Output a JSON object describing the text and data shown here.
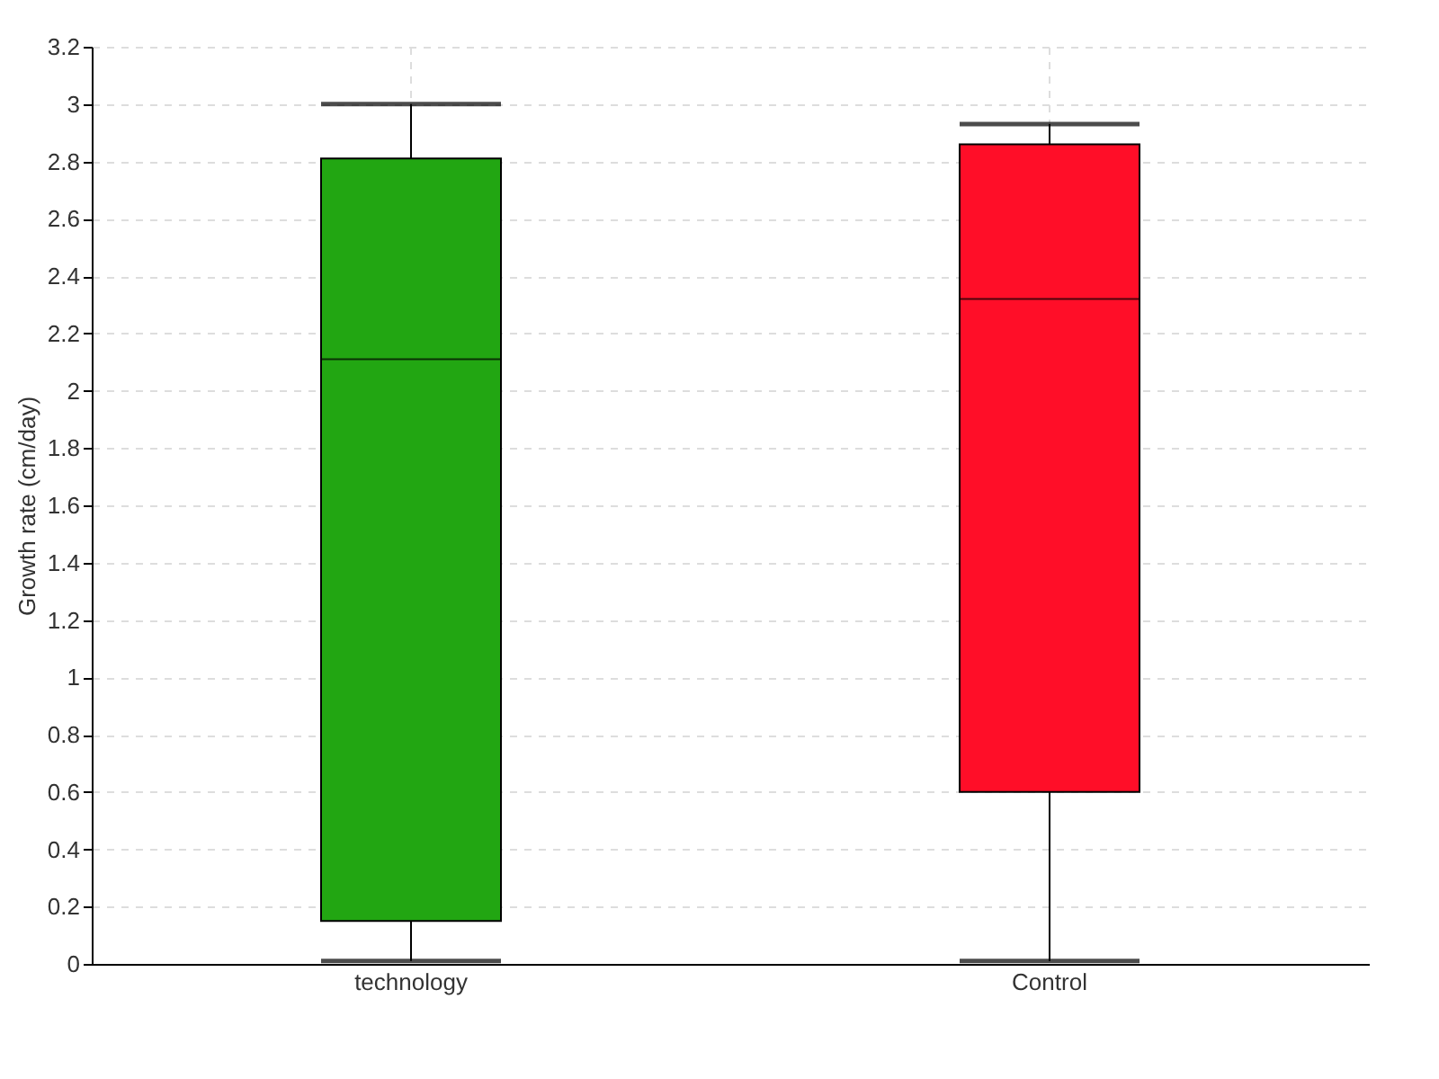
{
  "chart_data": {
    "type": "box",
    "ylabel": "Growth rate (cm/day)",
    "categories": [
      "technology",
      "Control"
    ],
    "boxes": [
      {
        "low": 0.01,
        "q1": 0.15,
        "median": 2.11,
        "q3": 2.81,
        "high": 3.0
      },
      {
        "low": 0.01,
        "q1": 0.6,
        "median": 2.32,
        "q3": 2.86,
        "high": 2.93
      }
    ],
    "colors": [
      "#22a612",
      "#ff0e28"
    ],
    "ylim": [
      0,
      3.2
    ],
    "yticks": [
      0,
      0.2,
      0.4,
      0.6,
      0.8,
      1,
      1.2,
      1.4,
      1.6,
      1.8,
      2,
      2.2,
      2.4,
      2.6,
      2.8,
      3,
      3.2
    ],
    "grid": true
  }
}
